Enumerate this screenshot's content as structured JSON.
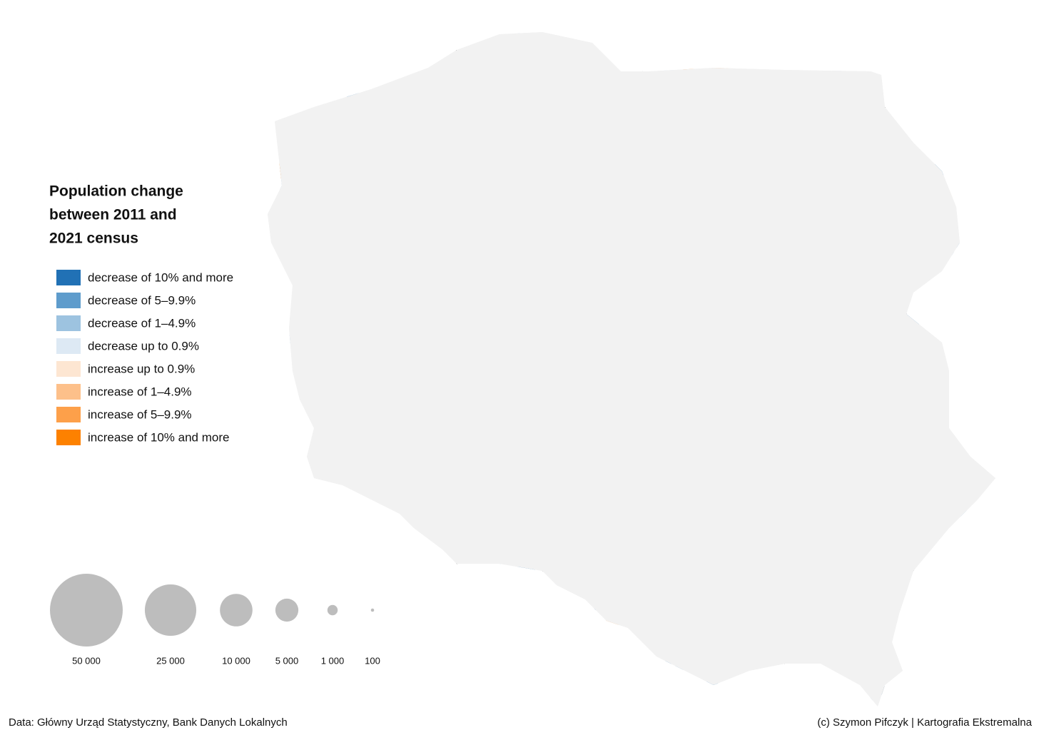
{
  "legend": {
    "title": [
      "Population change",
      "between 2011 and",
      "2021 census"
    ],
    "items": [
      {
        "label": "decrease of 10% and more",
        "color": "#2171b5"
      },
      {
        "label": "decrease of 5–9.9%",
        "color": "#5e9ccc"
      },
      {
        "label": "decrease of 1–4.9%",
        "color": "#9dc3e0"
      },
      {
        "label": "decrease up to 0.9%",
        "color": "#dde9f4"
      },
      {
        "label": "increase up to 0.9%",
        "color": "#fde6d2"
      },
      {
        "label": "increase of 1–4.9%",
        "color": "#fdc08a"
      },
      {
        "label": "increase of 5–9.9%",
        "color": "#fda04a"
      },
      {
        "label": "increase of 10% and more",
        "color": "#fd8100"
      }
    ]
  },
  "size_legend": {
    "color": "#bdbdbd",
    "values": [
      {
        "value": 50000,
        "label": "50 000"
      },
      {
        "value": 25000,
        "label": "25 000"
      },
      {
        "value": 10000,
        "label": "10 000"
      },
      {
        "value": 5000,
        "label": "5 000"
      },
      {
        "value": 1000,
        "label": "1 000"
      },
      {
        "value": 100,
        "label": "100"
      }
    ]
  },
  "footer": {
    "source": "Data: Główny Urząd Statystyczny, Bank Danych Lokalnych",
    "credit": "(c) Szymon Pifczyk | Kartografia Ekstremalna"
  }
}
